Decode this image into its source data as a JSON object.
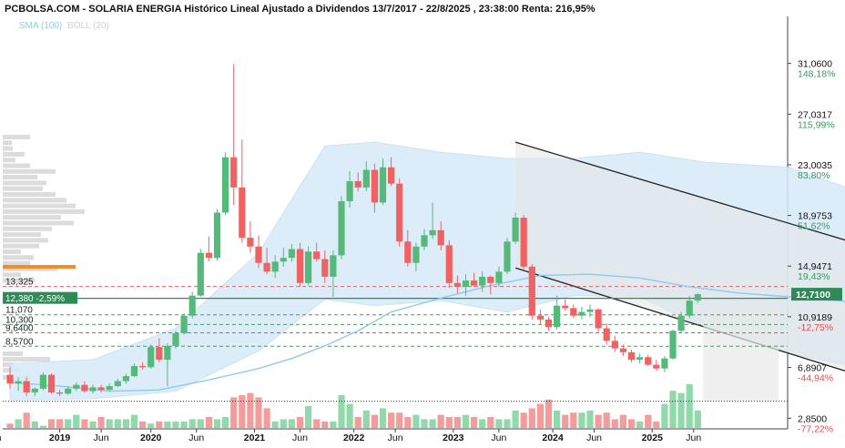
{
  "header": {
    "title": "PCBOLSA.COM - SOLARIA ENERGIA Histórico Lineal Ajustado a Dividendos 13/7/2017 - 22/8/2025 , 23:38:00 Renta: 216,95%",
    "legend_sma": "SMA (100)",
    "legend_boll": "BOLL (20)"
  },
  "chart_data": {
    "type": "candlestick",
    "title": "PCBOLSA.COM - SOLARIA ENERGIA Histórico Lineal Ajustado a Dividendos 13/7/2017 - 22/8/2025 , 23:38:00 Renta: 216,95%",
    "x_ticks": [
      "in",
      "2019",
      "Jun",
      "2020",
      "Jun",
      "2021",
      "Jun",
      "2022",
      "Jun",
      "2023",
      "Jun",
      "2024",
      "Jun",
      "2025",
      "Jun"
    ],
    "y_ticks": [
      {
        "value": 31.06,
        "price": "31,0600",
        "pct": "148,18%",
        "sign": "pos"
      },
      {
        "value": 27.0317,
        "price": "27,0317",
        "pct": "115,99%",
        "sign": "pos"
      },
      {
        "value": 23.0035,
        "price": "23,0035",
        "pct": "83,80%",
        "sign": "pos"
      },
      {
        "value": 18.9753,
        "price": "18,9753",
        "pct": "51,62%",
        "sign": "pos"
      },
      {
        "value": 14.9471,
        "price": "14,9471",
        "pct": "19,43%",
        "sign": "pos"
      },
      {
        "value": 10.9189,
        "price": "10,9189",
        "pct": "-12,75%",
        "sign": "neg"
      },
      {
        "value": 6.8907,
        "price": "6,8907",
        "pct": "-44,94%",
        "sign": "neg"
      },
      {
        "value": 2.85,
        "price": "2,8500",
        "pct": "-77,22%",
        "sign": "neg"
      }
    ],
    "ylim": [
      2.0,
      33.5
    ],
    "last_price": {
      "value": 12.71,
      "label": "12,7100"
    },
    "reference": {
      "value": 12.38,
      "label": "12,380 -2,59%"
    },
    "levels": [
      {
        "value": 13.325,
        "label": "13,325",
        "color": "#e06666",
        "style": "dashed"
      },
      {
        "value": 11.07,
        "label": "11,070",
        "color": "#4c9a6c",
        "style": "dashed"
      },
      {
        "value": 10.3,
        "label": "10,300",
        "color": "#4c9a6c",
        "style": "dashed"
      },
      {
        "value": 9.64,
        "label": "9,6400",
        "color": "#4c9a6c",
        "style": "dashed"
      },
      {
        "value": 8.57,
        "label": "8,5700",
        "color": "#4c9a6c",
        "style": "dashed"
      },
      {
        "value": 4.2,
        "label": "",
        "color": "#333333",
        "style": "dotted"
      }
    ],
    "candles": [
      [
        6.3,
        6.9,
        5.2,
        5.6
      ],
      [
        5.6,
        6.1,
        5.0,
        5.8
      ],
      [
        5.8,
        6.1,
        4.6,
        4.9
      ],
      [
        4.9,
        5.3,
        4.6,
        5.2
      ],
      [
        5.2,
        6.5,
        5.1,
        6.3
      ],
      [
        6.3,
        6.4,
        4.8,
        4.9
      ],
      [
        4.9,
        5.1,
        4.6,
        4.8
      ],
      [
        4.8,
        5.4,
        4.7,
        5.2
      ],
      [
        5.2,
        5.7,
        5.0,
        5.5
      ],
      [
        5.5,
        5.8,
        4.9,
        5.0
      ],
      [
        5.0,
        5.5,
        4.8,
        5.3
      ],
      [
        5.3,
        5.5,
        4.9,
        5.1
      ],
      [
        5.1,
        5.6,
        5.0,
        5.4
      ],
      [
        5.4,
        6.0,
        5.3,
        5.8
      ],
      [
        5.8,
        6.4,
        5.6,
        6.2
      ],
      [
        6.2,
        7.2,
        6.1,
        7.0
      ],
      [
        7.0,
        7.3,
        6.7,
        6.9
      ],
      [
        6.9,
        8.7,
        6.8,
        8.5
      ],
      [
        8.5,
        9.2,
        7.3,
        7.5
      ],
      [
        7.5,
        8.8,
        5.4,
        8.6
      ],
      [
        8.6,
        9.8,
        8.4,
        9.6
      ],
      [
        9.6,
        11.2,
        9.5,
        11.0
      ],
      [
        11.0,
        12.9,
        10.8,
        12.6
      ],
      [
        12.6,
        16.3,
        12.5,
        16.0
      ],
      [
        16.0,
        17.3,
        15.3,
        15.6
      ],
      [
        15.6,
        19.5,
        15.4,
        19.2
      ],
      [
        19.2,
        24.0,
        19.0,
        23.6
      ],
      [
        23.6,
        31.0,
        19.8,
        21.2
      ],
      [
        21.2,
        25.0,
        16.8,
        17.2
      ],
      [
        17.2,
        18.5,
        16.0,
        16.5
      ],
      [
        16.5,
        17.4,
        14.8,
        15.2
      ],
      [
        15.2,
        16.4,
        14.3,
        14.5
      ],
      [
        14.5,
        15.8,
        14.0,
        15.3
      ],
      [
        15.3,
        16.4,
        14.9,
        15.6
      ],
      [
        15.6,
        16.7,
        15.3,
        16.3
      ],
      [
        16.3,
        16.8,
        13.3,
        13.6
      ],
      [
        13.6,
        16.5,
        13.4,
        16.1
      ],
      [
        16.1,
        16.8,
        15.3,
        15.5
      ],
      [
        15.5,
        16.2,
        13.6,
        14.1
      ],
      [
        14.1,
        16.2,
        12.5,
        15.8
      ],
      [
        15.8,
        20.5,
        15.5,
        20.1
      ],
      [
        20.1,
        22.5,
        19.6,
        21.7
      ],
      [
        21.7,
        22.4,
        20.9,
        21.2
      ],
      [
        21.2,
        23.3,
        20.9,
        22.6
      ],
      [
        22.6,
        23.1,
        19.2,
        20.0
      ],
      [
        20.0,
        23.5,
        19.8,
        22.8
      ],
      [
        22.8,
        23.6,
        21.3,
        21.5
      ],
      [
        21.5,
        21.9,
        16.5,
        16.9
      ],
      [
        16.9,
        17.8,
        14.9,
        15.2
      ],
      [
        15.2,
        16.8,
        14.5,
        16.5
      ],
      [
        16.5,
        17.9,
        16.2,
        17.4
      ],
      [
        17.4,
        20.0,
        17.1,
        17.8
      ],
      [
        17.8,
        18.5,
        16.2,
        16.6
      ],
      [
        16.6,
        17.0,
        13.2,
        13.6
      ],
      [
        13.6,
        14.2,
        12.8,
        13.3
      ],
      [
        13.3,
        14.3,
        12.6,
        13.8
      ],
      [
        13.8,
        14.4,
        13.3,
        13.4
      ],
      [
        13.4,
        14.5,
        12.9,
        14.1
      ],
      [
        14.1,
        14.2,
        12.7,
        13.6
      ],
      [
        13.6,
        14.9,
        13.3,
        14.5
      ],
      [
        14.5,
        17.2,
        14.3,
        16.9
      ],
      [
        16.9,
        19.2,
        16.7,
        18.8
      ],
      [
        18.8,
        19.0,
        14.6,
        14.9
      ],
      [
        14.9,
        15.1,
        10.7,
        11.0
      ],
      [
        11.0,
        11.5,
        10.3,
        10.7
      ],
      [
        10.7,
        10.9,
        9.8,
        10.1
      ],
      [
        10.1,
        12.6,
        9.9,
        11.8
      ],
      [
        11.8,
        12.3,
        11.4,
        11.6
      ],
      [
        11.6,
        11.9,
        10.8,
        11.0
      ],
      [
        11.0,
        11.7,
        10.7,
        11.3
      ],
      [
        11.3,
        11.9,
        10.9,
        11.5
      ],
      [
        11.5,
        11.6,
        9.7,
        10.0
      ],
      [
        10.0,
        10.4,
        8.7,
        9.0
      ],
      [
        9.0,
        9.4,
        8.1,
        8.4
      ],
      [
        8.4,
        8.7,
        7.8,
        8.1
      ],
      [
        8.1,
        8.3,
        7.3,
        7.5
      ],
      [
        7.5,
        8.0,
        7.2,
        7.7
      ],
      [
        7.7,
        7.9,
        7.0,
        7.1
      ],
      [
        7.1,
        7.5,
        6.6,
        6.8
      ],
      [
        6.8,
        7.8,
        6.5,
        7.6
      ],
      [
        7.6,
        9.9,
        7.5,
        9.8
      ],
      [
        9.8,
        11.3,
        9.6,
        11.0
      ],
      [
        11.0,
        12.6,
        10.8,
        12.2
      ],
      [
        12.2,
        12.8,
        12.0,
        12.71
      ]
    ],
    "volume": [
      2,
      4,
      7,
      3,
      1,
      4,
      4,
      4,
      6,
      4,
      3,
      5,
      4,
      4,
      4,
      6,
      3,
      2,
      3,
      3,
      3,
      3,
      4,
      4,
      5,
      4,
      5,
      14,
      15,
      16,
      14,
      9,
      3,
      4,
      4,
      5,
      10,
      4,
      3,
      3,
      15,
      11,
      5,
      8,
      6,
      9,
      7,
      7,
      5,
      6,
      4,
      4,
      6,
      5,
      5,
      6,
      5,
      4,
      5,
      4,
      4,
      8,
      7,
      9,
      11,
      13,
      8,
      6,
      7,
      7,
      8,
      6,
      7,
      4,
      6,
      4,
      3,
      6,
      3,
      11,
      17,
      16,
      20,
      8
    ],
    "sma_100": [
      [
        0,
        5.7
      ],
      [
        6,
        5.4
      ],
      [
        12,
        5.0
      ],
      [
        18,
        5.1
      ],
      [
        24,
        5.9
      ],
      [
        30,
        6.8
      ],
      [
        34,
        7.6
      ],
      [
        38,
        8.6
      ],
      [
        42,
        9.8
      ],
      [
        46,
        11.3
      ],
      [
        52,
        12.4
      ],
      [
        58,
        13.4
      ],
      [
        64,
        14.2
      ],
      [
        70,
        14.3
      ],
      [
        76,
        14.0
      ],
      [
        82,
        13.3
      ],
      [
        88,
        12.8
      ],
      [
        94,
        12.5
      ],
      [
        100,
        12.2
      ],
      [
        104,
        11.9
      ],
      [
        108,
        11.5
      ],
      [
        112,
        10.9
      ],
      [
        114,
        10.7
      ],
      [
        116,
        10.6
      ],
      [
        118,
        10.7
      ]
    ],
    "boll_upper": [
      [
        0,
        7.2
      ],
      [
        10,
        7.5
      ],
      [
        20,
        10.0
      ],
      [
        30,
        16.0
      ],
      [
        38,
        24.5
      ],
      [
        44,
        24.8
      ],
      [
        52,
        24.0
      ],
      [
        60,
        23.5
      ],
      [
        68,
        23.5
      ],
      [
        76,
        24.0
      ],
      [
        84,
        23.2
      ],
      [
        94,
        22.8
      ],
      [
        104,
        20.5
      ],
      [
        112,
        17.5
      ],
      [
        118,
        15.2
      ]
    ],
    "boll_lower": [
      [
        0,
        4.3
      ],
      [
        10,
        4.4
      ],
      [
        20,
        5.0
      ],
      [
        30,
        8.2
      ],
      [
        38,
        12.3
      ],
      [
        44,
        11.8
      ],
      [
        52,
        12.2
      ],
      [
        60,
        11.3
      ],
      [
        68,
        12.6
      ],
      [
        76,
        12.5
      ],
      [
        84,
        10.0
      ],
      [
        94,
        8.0
      ],
      [
        100,
        7.2
      ],
      [
        106,
        6.5
      ],
      [
        112,
        6.2
      ],
      [
        116,
        7.5
      ],
      [
        118,
        9.5
      ]
    ],
    "channel": {
      "upper": [
        [
          61,
          24.8
        ],
        [
          128,
          11.7
        ]
      ],
      "lower": [
        [
          61,
          14.8
        ],
        [
          128,
          1.0
        ]
      ]
    },
    "colors": {
      "up": "#55b97a",
      "down": "#f06262",
      "boll_fill": "#d6ebf8",
      "sma": "#8fc9ee",
      "channel_fill": "#e5e5e5",
      "channel_line": "#222222"
    }
  }
}
